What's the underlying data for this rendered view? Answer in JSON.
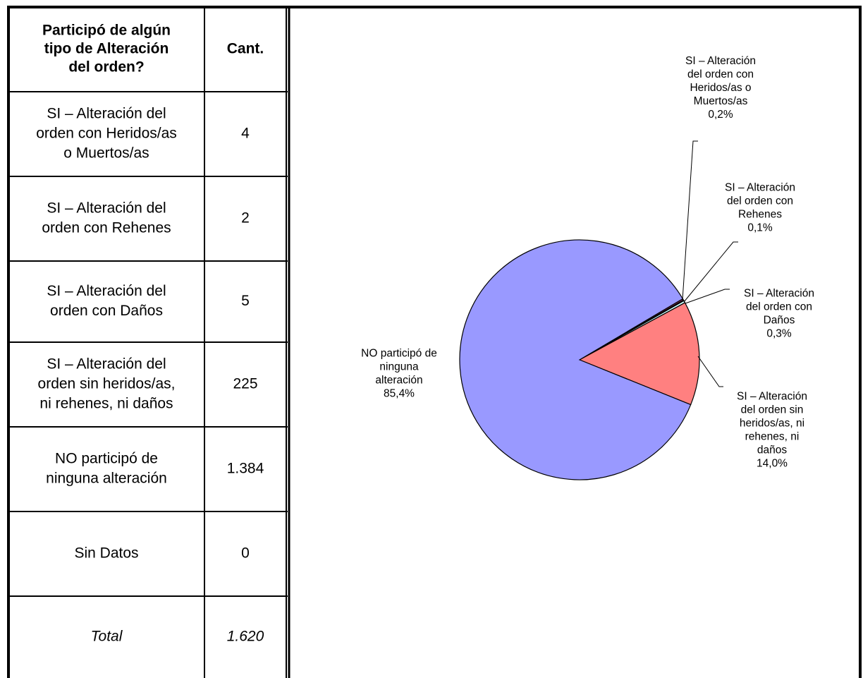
{
  "table": {
    "header": [
      "Participó de algún tipo de Alteración del orden?",
      "Cant."
    ],
    "rows": [
      [
        "SI – Alteración del orden con Heridos/as o Muertos/as",
        "4"
      ],
      [
        "SI – Alteración del orden con Rehenes",
        "2"
      ],
      [
        "SI – Alteración del orden con Daños",
        "5"
      ],
      [
        "SI – Alteración del orden sin heridos/as, ni rehenes, ni daños",
        "225"
      ],
      [
        "NO participó de ninguna alteración",
        "1.384"
      ],
      [
        "Sin Datos",
        "0"
      ],
      [
        "Total",
        "1.620"
      ]
    ]
  },
  "chart_data": {
    "type": "pie",
    "categories": [
      "SI – Alteración del orden con Heridos/as o Muertos/as",
      "SI – Alteración del orden con Rehenes",
      "SI – Alteración del orden con Daños",
      "SI – Alteración del orden sin heridos/as, ni rehenes, ni daños",
      "NO participó de ninguna alteración"
    ],
    "values": [
      0.2,
      0.1,
      0.3,
      14.0,
      85.4
    ],
    "value_labels": [
      "0,2%",
      "0,1%",
      "0,3%",
      "14,0%",
      "85,4%"
    ],
    "colors": [
      "#993366",
      "#ffffcc",
      "#ccffff",
      "#ff8080",
      "#9999ff"
    ]
  }
}
